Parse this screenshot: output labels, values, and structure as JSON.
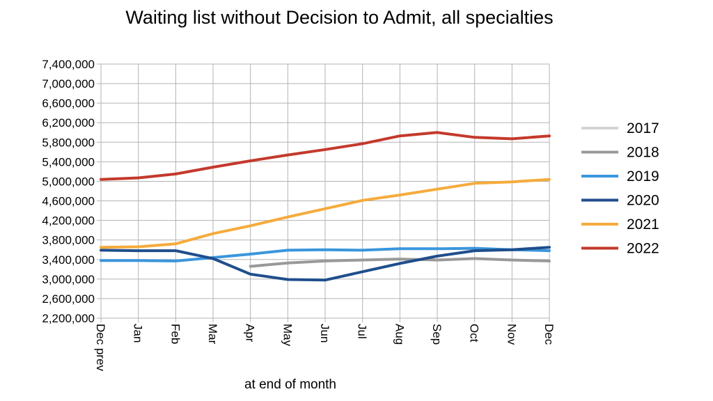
{
  "chart_data": {
    "type": "line",
    "title": "Waiting list without Decision to Admit, all specialties",
    "xlabel": "at end of month",
    "ylabel": "",
    "categories": [
      "Dec prev",
      "Jan",
      "Feb",
      "Mar",
      "Apr",
      "May",
      "Jun",
      "Jul",
      "Aug",
      "Sep",
      "Oct",
      "Nov",
      "Dec"
    ],
    "y_ticks": [
      "2,200,000",
      "2,600,000",
      "3,000,000",
      "3,400,000",
      "3,800,000",
      "4,200,000",
      "4,600,000",
      "5,000,000",
      "5,400,000",
      "5,800,000",
      "6,200,000",
      "6,600,000",
      "7,000,000",
      "7,400,000"
    ],
    "ylim": [
      2200000,
      7400000
    ],
    "grid": true,
    "legend_position": "right",
    "series": [
      {
        "name": "2017",
        "color": "#d4d4d4",
        "values": [
          null,
          null,
          null,
          null,
          null,
          null,
          null,
          null,
          null,
          null,
          null,
          null,
          null
        ]
      },
      {
        "name": "2018",
        "color": "#999999",
        "values": [
          null,
          null,
          null,
          null,
          3260000,
          3330000,
          3370000,
          3390000,
          3410000,
          3390000,
          3420000,
          3390000,
          3370000
        ]
      },
      {
        "name": "2019",
        "color": "#3a96dc",
        "values": [
          3380000,
          3380000,
          3370000,
          3440000,
          3510000,
          3590000,
          3600000,
          3590000,
          3620000,
          3620000,
          3630000,
          3600000,
          3580000
        ]
      },
      {
        "name": "2020",
        "color": "#1f4e8c",
        "values": [
          3590000,
          3580000,
          3580000,
          3420000,
          3100000,
          2990000,
          2980000,
          3150000,
          3320000,
          3470000,
          3580000,
          3600000,
          3650000
        ]
      },
      {
        "name": "2021",
        "color": "#f5ab3c",
        "values": [
          3650000,
          3660000,
          3720000,
          3930000,
          4090000,
          4270000,
          4440000,
          4610000,
          4720000,
          4840000,
          4960000,
          4990000,
          5040000
        ]
      },
      {
        "name": "2022",
        "color": "#c4392c",
        "values": [
          5040000,
          5070000,
          5150000,
          5290000,
          5420000,
          5540000,
          5650000,
          5770000,
          5930000,
          6000000,
          5900000,
          5870000,
          5930000
        ]
      }
    ]
  }
}
